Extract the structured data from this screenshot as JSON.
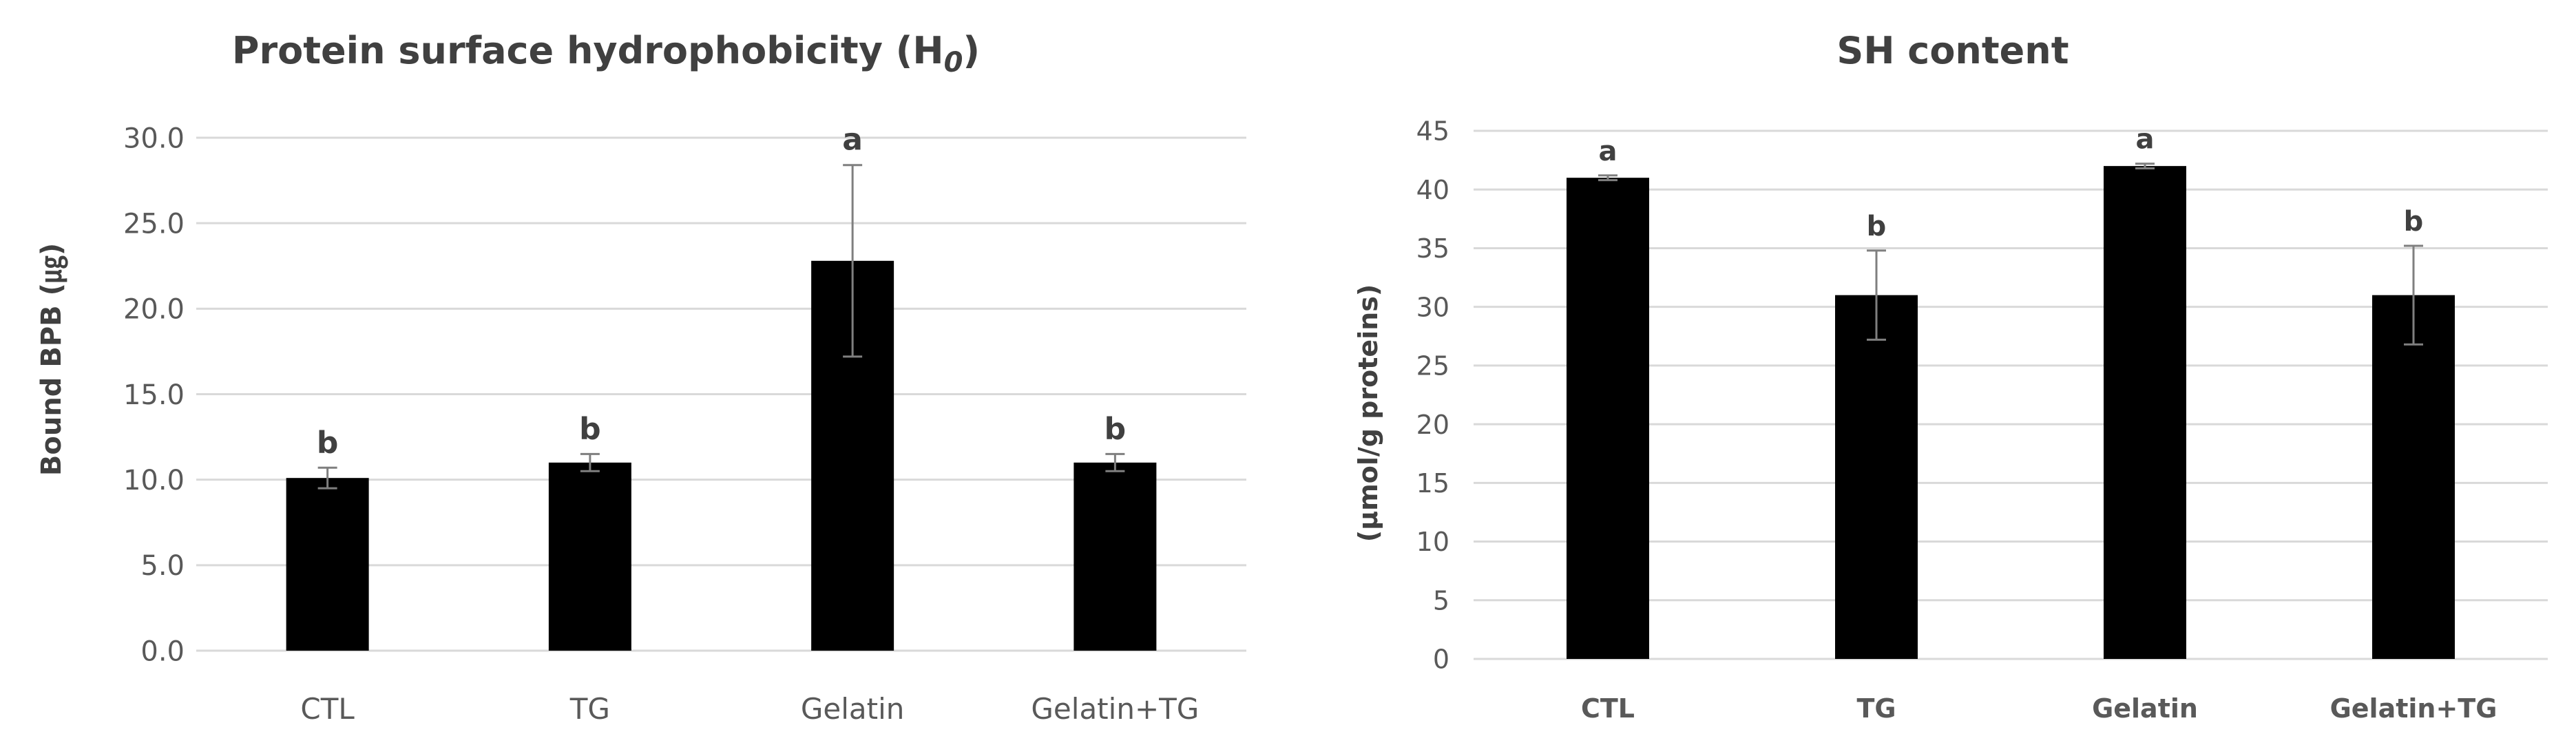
{
  "chart_data": [
    {
      "id": "h0",
      "type": "bar",
      "title": "Protein surface hydrophobicity (H",
      "title_subscript": "0",
      "title_suffix": ")",
      "xlabel": "",
      "ylabel": "Bound BPB (㎍)",
      "ylim": [
        0,
        30
      ],
      "ytick_values": [
        0,
        5,
        10,
        15,
        20,
        25,
        30
      ],
      "ytick_labels": [
        "0.0",
        "5.0",
        "10.0",
        "15.0",
        "20.0",
        "25.0",
        "30.0"
      ],
      "categories": [
        "CTL",
        "TG",
        "Gelatin",
        "Gelatin+TG"
      ],
      "values": [
        10.1,
        11.0,
        22.8,
        11.0
      ],
      "error": [
        0.6,
        0.5,
        5.6,
        0.5
      ],
      "significance": [
        "b",
        "b",
        "a",
        "b"
      ],
      "grid": true,
      "bold_categories": false
    },
    {
      "id": "sh",
      "type": "bar",
      "title": "SH content",
      "xlabel": "",
      "ylabel": "(μmol/g proteins)",
      "ylim": [
        0,
        45
      ],
      "ytick_values": [
        0,
        5,
        10,
        15,
        20,
        25,
        30,
        35,
        40,
        45
      ],
      "ytick_labels": [
        "0",
        "5",
        "10",
        "15",
        "20",
        "25",
        "30",
        "35",
        "40",
        "45"
      ],
      "categories": [
        "CTL",
        "TG",
        "Gelatin",
        "Gelatin+TG"
      ],
      "values": [
        41.0,
        31.0,
        42.0,
        31.0
      ],
      "error": [
        0.2,
        3.8,
        0.2,
        4.2
      ],
      "significance": [
        "a",
        "b",
        "a",
        "b"
      ],
      "grid": true,
      "bold_categories": true
    }
  ]
}
